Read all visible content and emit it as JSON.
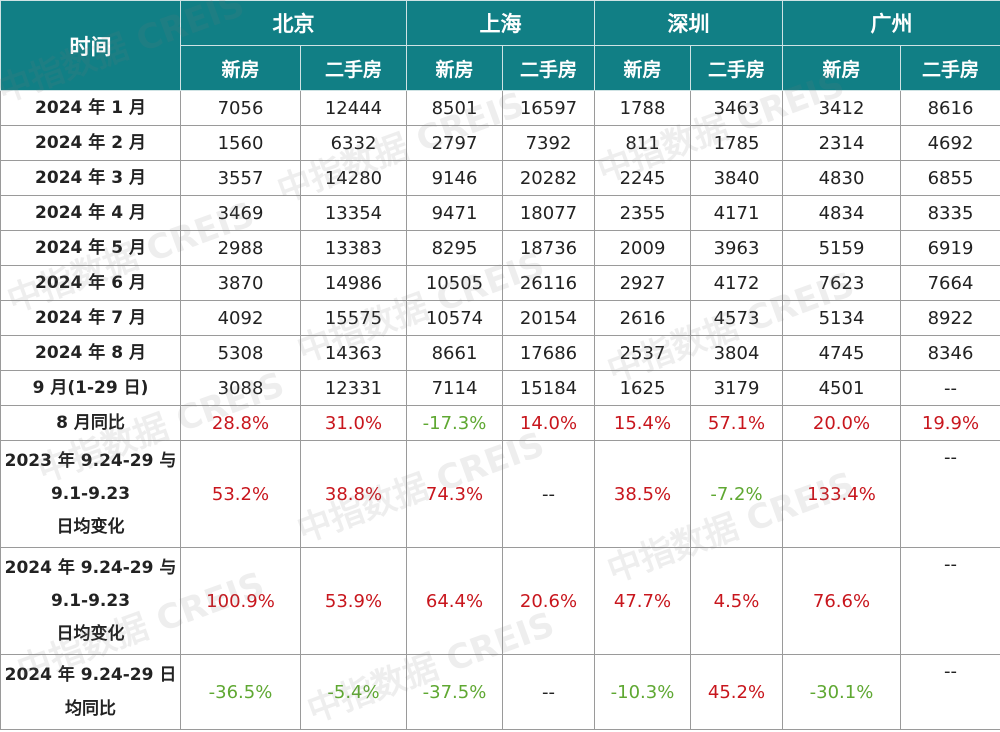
{
  "header": {
    "time_label": "时间",
    "cities": [
      "北京",
      "上海",
      "深圳",
      "广州"
    ],
    "sub": [
      "新房",
      "二手房"
    ]
  },
  "rows": [
    {
      "label": "2024 年 1 月",
      "v": [
        "7056",
        "12444",
        "8501",
        "16597",
        "1788",
        "3463",
        "3412",
        "8616"
      ]
    },
    {
      "label": "2024 年 2 月",
      "v": [
        "1560",
        "6332",
        "2797",
        "7392",
        "811",
        "1785",
        "2314",
        "4692"
      ]
    },
    {
      "label": "2024 年 3 月",
      "v": [
        "3557",
        "14280",
        "9146",
        "20282",
        "2245",
        "3840",
        "4830",
        "6855"
      ]
    },
    {
      "label": "2024 年 4 月",
      "v": [
        "3469",
        "13354",
        "9471",
        "18077",
        "2355",
        "4171",
        "4834",
        "8335"
      ]
    },
    {
      "label": "2024 年 5 月",
      "v": [
        "2988",
        "13383",
        "8295",
        "18736",
        "2009",
        "3963",
        "5159",
        "6919"
      ]
    },
    {
      "label": "2024 年 6 月",
      "v": [
        "3870",
        "14986",
        "10505",
        "26116",
        "2927",
        "4172",
        "7623",
        "7664"
      ]
    },
    {
      "label": "2024 年 7 月",
      "v": [
        "4092",
        "15575",
        "10574",
        "20154",
        "2616",
        "4573",
        "5134",
        "8922"
      ]
    },
    {
      "label": "2024 年 8 月",
      "v": [
        "5308",
        "14363",
        "8661",
        "17686",
        "2537",
        "3804",
        "4745",
        "8346"
      ]
    },
    {
      "label": "9 月(1-29 日)",
      "v": [
        "3088",
        "12331",
        "7114",
        "15184",
        "1625",
        "3179",
        "4501",
        "--"
      ]
    }
  ],
  "yoy_aug": {
    "label": "8 月同比",
    "v": [
      "28.8%",
      "31.0%",
      "-17.3%",
      "14.0%",
      "15.4%",
      "57.1%",
      "20.0%",
      "19.9%"
    ]
  },
  "chg_2023": {
    "label_lines": [
      "2023 年 9.24-29 与",
      "9.1-9.23",
      "日均变化"
    ],
    "v": [
      "53.2%",
      "38.8%",
      "74.3%",
      "--",
      "38.5%",
      "-7.2%",
      "133.4%",
      "--"
    ]
  },
  "chg_2024": {
    "label_lines": [
      "2024 年 9.24-29 与",
      "9.1-9.23",
      "日均变化"
    ],
    "v": [
      "100.9%",
      "53.9%",
      "64.4%",
      "20.6%",
      "47.7%",
      "4.5%",
      "76.6%",
      "--"
    ]
  },
  "yoy_daily": {
    "label_lines": [
      "2024 年 9.24-29 日",
      "均同比"
    ],
    "v": [
      "-36.5%",
      "-5.4%",
      "-37.5%",
      "--",
      "-10.3%",
      "45.2%",
      "-30.1%",
      "--"
    ]
  },
  "watermark": "中指数据 CREIS",
  "colors": {
    "header_bg": "#117f85",
    "positive": "#c8161d",
    "negative": "#5fa832"
  }
}
